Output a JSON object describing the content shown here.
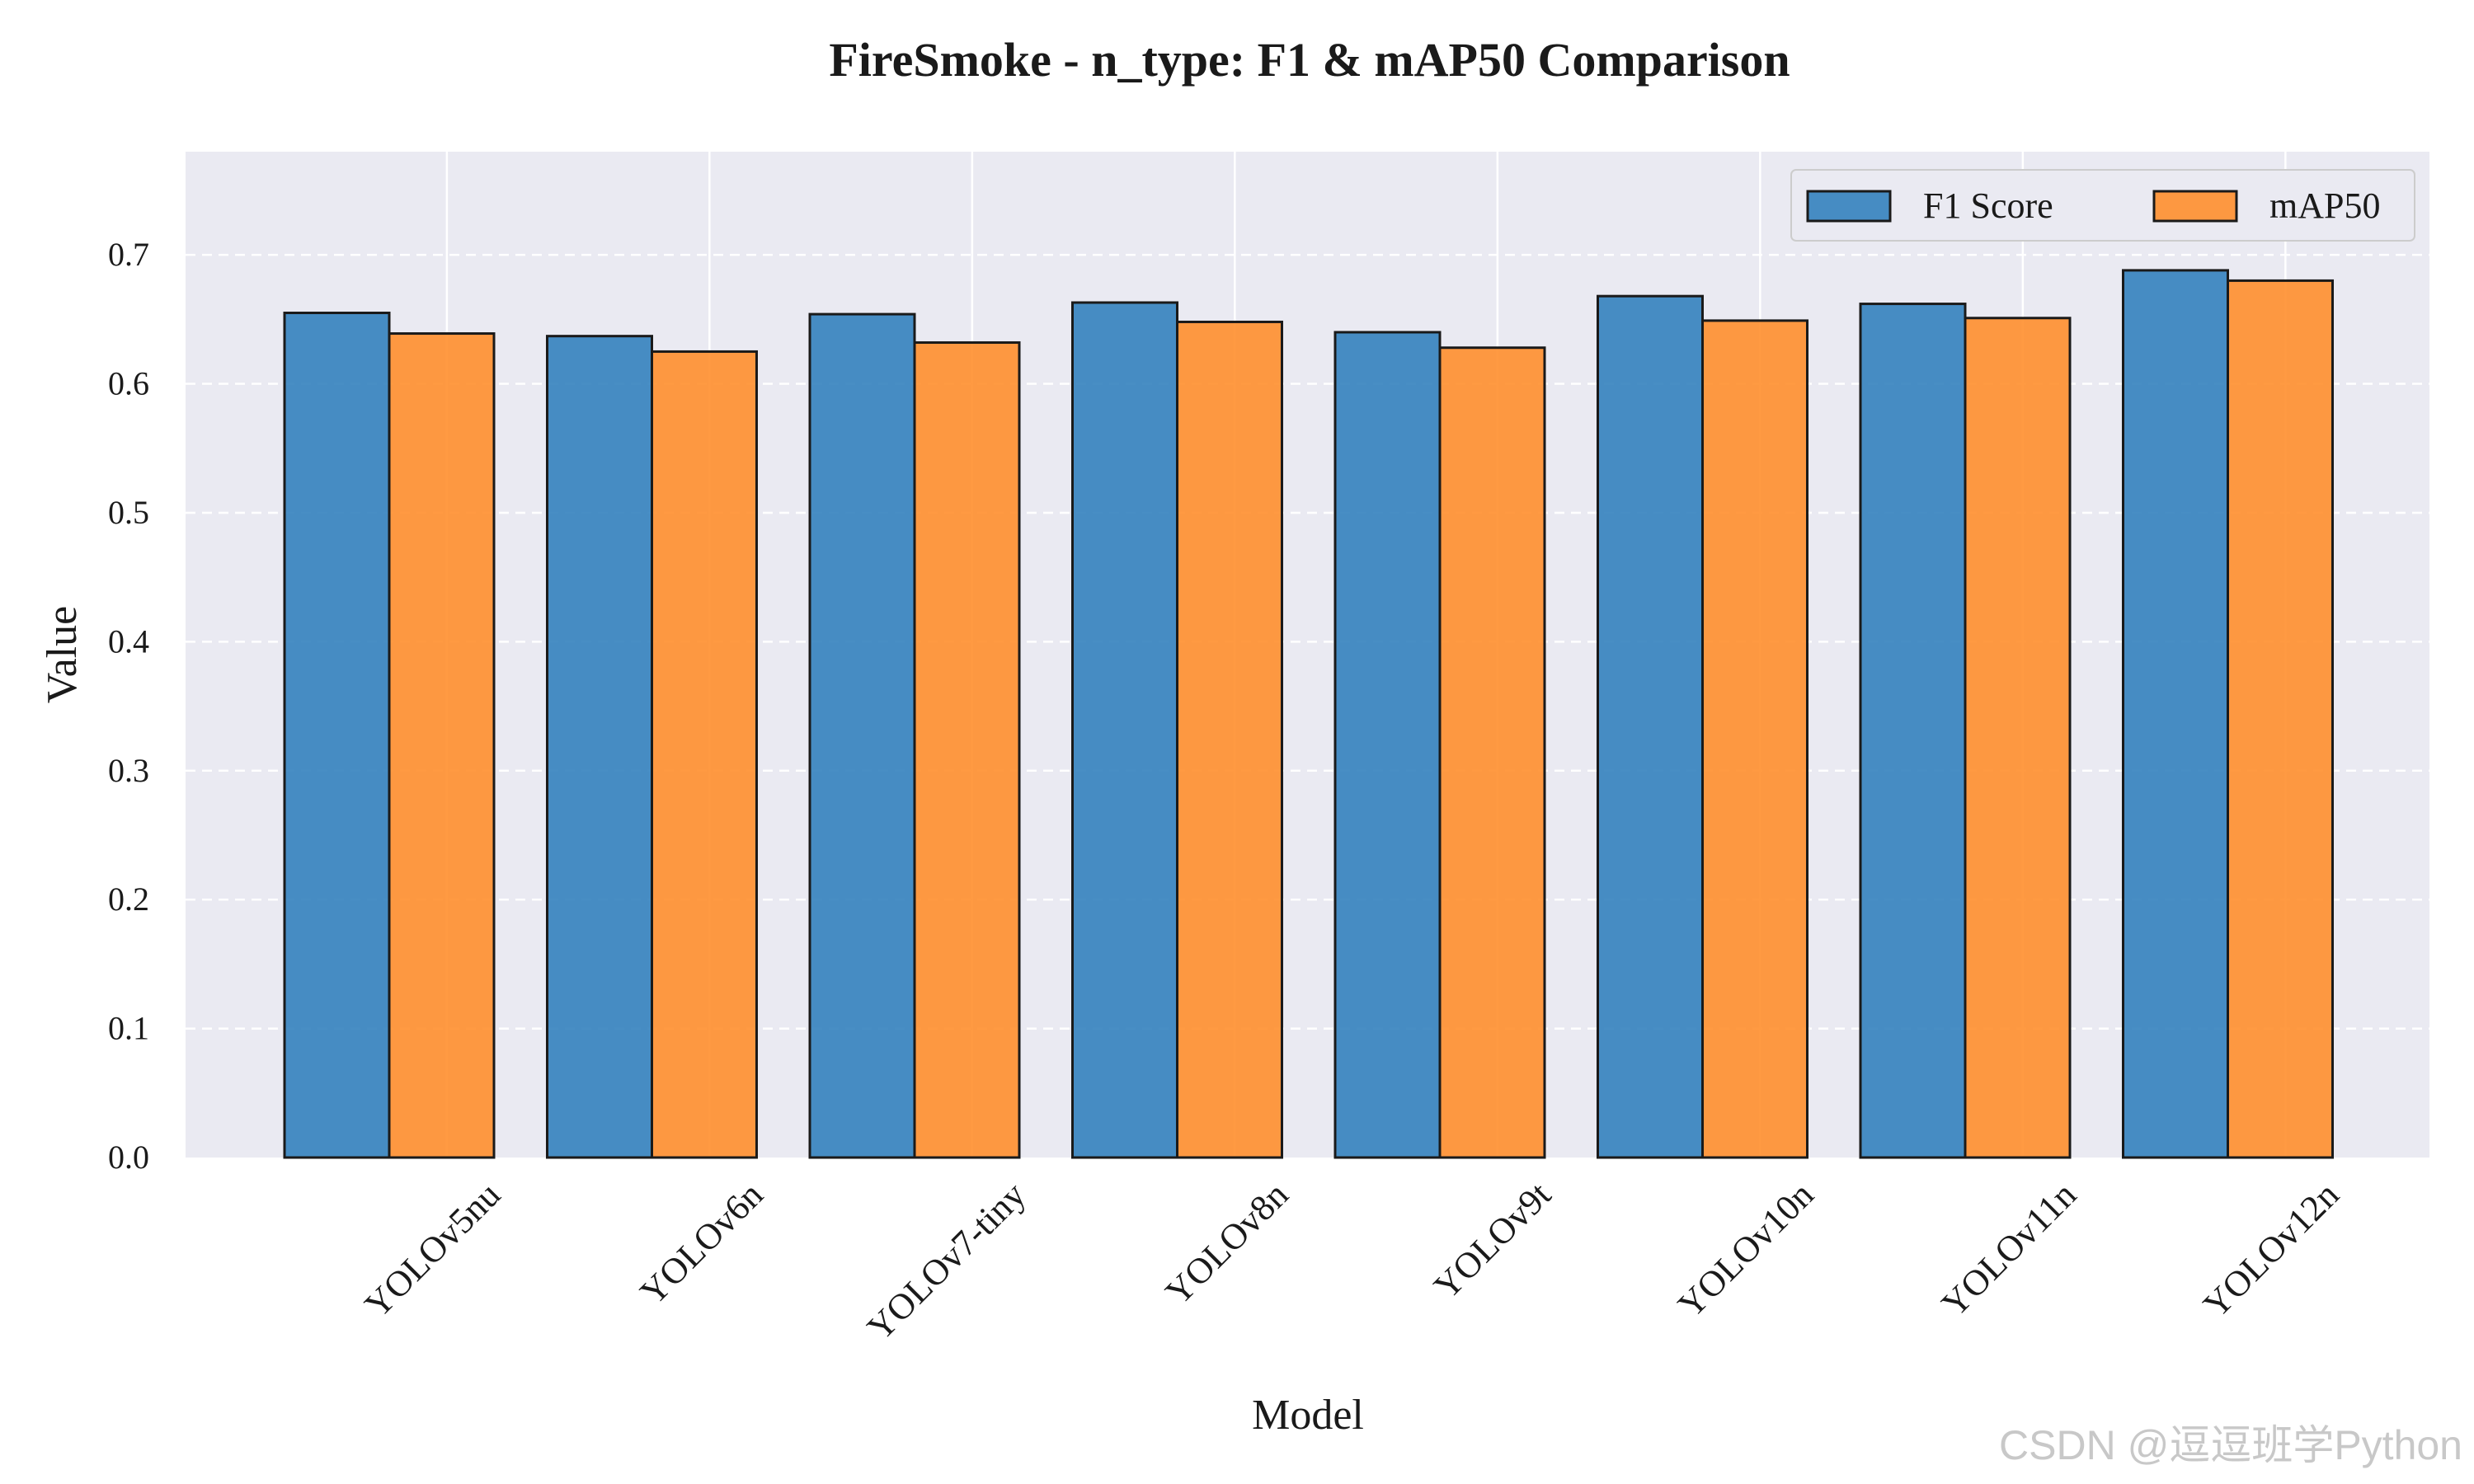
{
  "chart_data": {
    "type": "bar",
    "title": "FireSmoke - n_type: F1 & mAP50 Comparison",
    "xlabel": "Model",
    "ylabel": "Value",
    "ylim": [
      0,
      0.78
    ],
    "yticks": [
      "0.0",
      "0.1",
      "0.2",
      "0.3",
      "0.4",
      "0.5",
      "0.6",
      "0.7"
    ],
    "categories": [
      "YOLOv5nu",
      "YOLOv6n",
      "YOLOv7-tiny",
      "YOLOv8n",
      "YOLOv9t",
      "YOLOv10n",
      "YOLOv11n",
      "YOLOv12n"
    ],
    "series": [
      {
        "name": "F1 Score",
        "color": "#2f7ebc",
        "values": [
          0.655,
          0.637,
          0.654,
          0.663,
          0.64,
          0.668,
          0.662,
          0.688
        ]
      },
      {
        "name": "mAP50",
        "color": "#ff8c28",
        "values": [
          0.639,
          0.625,
          0.632,
          0.648,
          0.628,
          0.649,
          0.651,
          0.68
        ]
      }
    ],
    "grid": true,
    "legend_position": "top-right",
    "background": "#eaeaf2"
  },
  "watermark": "CSDN @逗逗班学Python"
}
